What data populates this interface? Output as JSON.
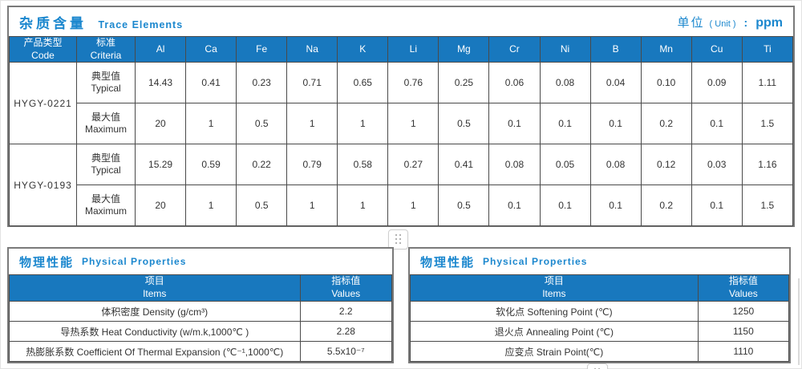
{
  "trace": {
    "title_zh": "杂质含量",
    "title_en": "Trace Elements",
    "unit_zh": "单位",
    "unit_paren": "( Unit )",
    "unit_colon": ":",
    "unit_value": "ppm",
    "header": {
      "code_zh": "产品类型",
      "code_en": "Code",
      "criteria_zh": "标准",
      "criteria_en": "Criteria"
    },
    "elements": [
      "Al",
      "Ca",
      "Fe",
      "Na",
      "K",
      "Li",
      "Mg",
      "Cr",
      "Ni",
      "B",
      "Mn",
      "Cu",
      "Ti"
    ],
    "row_labels": {
      "typical_zh": "典型值",
      "typical_en": "Typical",
      "maximum_zh": "最大值",
      "maximum_en": "Maximum"
    },
    "products": [
      {
        "code": "HYGY-0221",
        "typical": [
          "14.43",
          "0.41",
          "0.23",
          "0.71",
          "0.65",
          "0.76",
          "0.25",
          "0.06",
          "0.08",
          "0.04",
          "0.10",
          "0.09",
          "1.11"
        ],
        "maximum": [
          "20",
          "1",
          "0.5",
          "1",
          "1",
          "1",
          "0.5",
          "0.1",
          "0.1",
          "0.1",
          "0.2",
          "0.1",
          "1.5"
        ]
      },
      {
        "code": "HYGY-0193",
        "typical": [
          "15.29",
          "0.59",
          "0.22",
          "0.79",
          "0.58",
          "0.27",
          "0.41",
          "0.08",
          "0.05",
          "0.08",
          "0.12",
          "0.03",
          "1.16"
        ],
        "maximum": [
          "20",
          "1",
          "0.5",
          "1",
          "1",
          "1",
          "0.5",
          "0.1",
          "0.1",
          "0.1",
          "0.2",
          "0.1",
          "1.5"
        ]
      }
    ]
  },
  "physical_left": {
    "title_zh": "物理性能",
    "title_en": "Physical Properties",
    "col_items_zh": "项目",
    "col_items_en": "Items",
    "col_values_zh": "指标值",
    "col_values_en": "Values",
    "rows": [
      {
        "item": "体积密度 Density (g/cm³)",
        "value": "2.2"
      },
      {
        "item": "导热系数 Heat Conductivity (w/m.k,1000℃ )",
        "value": "2.28"
      },
      {
        "item": "热膨胀系数 Coefficient Of Thermal Expansion (℃⁻¹,1000℃)",
        "value": "5.5x10⁻⁷"
      }
    ]
  },
  "physical_right": {
    "title_zh": "物理性能",
    "title_en": "Physical Properties",
    "col_items_zh": "项目",
    "col_items_en": "Items",
    "col_values_zh": "指标值",
    "col_values_en": "Values",
    "rows": [
      {
        "item": "软化点 Softening Point (℃)",
        "value": "1250"
      },
      {
        "item": "退火点 Annealing Point (℃)",
        "value": "1150"
      },
      {
        "item": "应变点 Strain Point(℃)",
        "value": "1110"
      }
    ]
  },
  "icons": {
    "drag_handle": "six-dot-grid"
  },
  "colors": {
    "header_blue": "#1878be",
    "title_blue": "#1b87ce",
    "outer_border": "#7a7a7a",
    "cell_border": "#4a4a4a"
  }
}
